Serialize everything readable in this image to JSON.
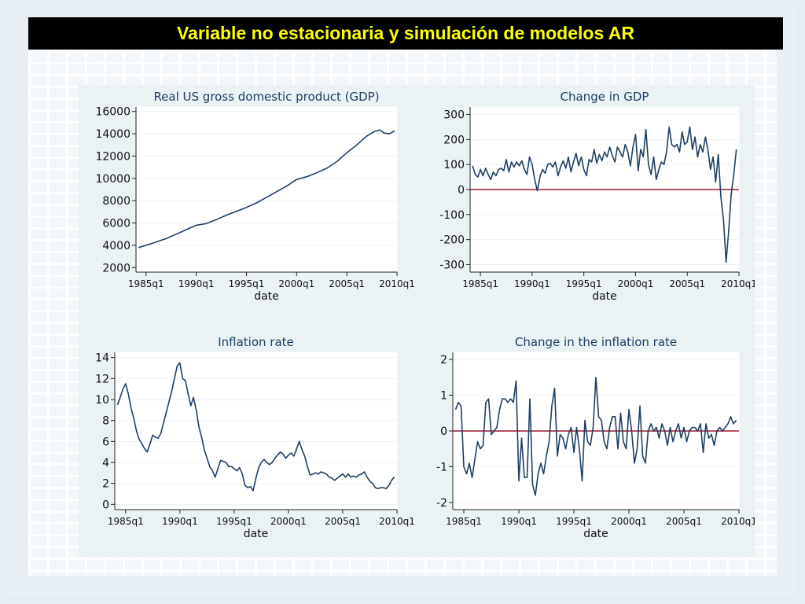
{
  "slide": {
    "title": "Variable no estacionaria y simulación de modelos AR"
  },
  "colors": {
    "title_bg": "#000000",
    "title_text": "#ffff00",
    "series": "#1f3f63",
    "zero_line": "#9b1b30",
    "panel_bg": "#eaf2f3"
  },
  "chart_data": [
    {
      "type": "line",
      "title": "Real US gross domestic product (GDP)",
      "xlabel": "date",
      "ylabel": "",
      "x_range": [
        1984.0,
        2010.0
      ],
      "ylim": [
        1600,
        16400
      ],
      "xticks": [
        {
          "pos": 1985.0,
          "label": "1985q1"
        },
        {
          "pos": 1990.0,
          "label": "1990q1"
        },
        {
          "pos": 1995.0,
          "label": "1995q1"
        },
        {
          "pos": 2000.0,
          "label": "2000q1"
        },
        {
          "pos": 2005.0,
          "label": "2005q1"
        },
        {
          "pos": 2010.0,
          "label": "2010q1"
        }
      ],
      "yticks": [
        2000,
        4000,
        6000,
        8000,
        10000,
        12000,
        14000,
        16000
      ],
      "zero_line": false,
      "series": [
        {
          "x": [
            1984.25,
            1985.0,
            1986.0,
            1987.0,
            1988.0,
            1989.0,
            1990.0,
            1991.0,
            1992.0,
            1993.0,
            1994.0,
            1995.0,
            1996.0,
            1997.0,
            1998.0,
            1999.0,
            2000.0,
            2001.0,
            2002.0,
            2003.0,
            2004.0,
            2005.0,
            2006.0,
            2007.0,
            2007.75,
            2008.25,
            2008.75,
            2009.25,
            2009.75
          ],
          "y": [
            3800,
            4000,
            4300,
            4600,
            5000,
            5400,
            5800,
            5950,
            6300,
            6700,
            7050,
            7400,
            7800,
            8300,
            8800,
            9300,
            9900,
            10150,
            10500,
            10900,
            11500,
            12300,
            13000,
            13800,
            14200,
            14350,
            14050,
            14000,
            14250
          ]
        }
      ]
    },
    {
      "type": "line",
      "title": "Change in GDP",
      "xlabel": "date",
      "ylabel": "",
      "x_range": [
        1984.0,
        2010.0
      ],
      "ylim": [
        -330,
        330
      ],
      "xticks": [
        {
          "pos": 1985.0,
          "label": "1985q1"
        },
        {
          "pos": 1990.0,
          "label": "1990q1"
        },
        {
          "pos": 1995.0,
          "label": "1995q1"
        },
        {
          "pos": 2000.0,
          "label": "2000q1"
        },
        {
          "pos": 2005.0,
          "label": "2005q1"
        },
        {
          "pos": 2010.0,
          "label": "2010q1"
        }
      ],
      "yticks": [
        -300,
        -200,
        -100,
        0,
        100,
        200,
        300
      ],
      "zero_line": true,
      "series": [
        {
          "x": [
            1984.25,
            1984.5,
            1984.75,
            1985.0,
            1985.25,
            1985.5,
            1985.75,
            1986.0,
            1986.25,
            1986.5,
            1986.75,
            1987.0,
            1987.25,
            1987.5,
            1987.75,
            1988.0,
            1988.25,
            1988.5,
            1988.75,
            1989.0,
            1989.25,
            1989.5,
            1989.75,
            1990.0,
            1990.25,
            1990.5,
            1990.75,
            1991.0,
            1991.25,
            1991.5,
            1991.75,
            1992.0,
            1992.25,
            1992.5,
            1992.75,
            1993.0,
            1993.25,
            1993.5,
            1993.75,
            1994.0,
            1994.25,
            1994.5,
            1994.75,
            1995.0,
            1995.25,
            1995.5,
            1995.75,
            1996.0,
            1996.25,
            1996.5,
            1996.75,
            1997.0,
            1997.25,
            1997.5,
            1997.75,
            1998.0,
            1998.25,
            1998.5,
            1998.75,
            1999.0,
            1999.25,
            1999.5,
            1999.75,
            2000.0,
            2000.25,
            2000.5,
            2000.75,
            2001.0,
            2001.25,
            2001.5,
            2001.75,
            2002.0,
            2002.25,
            2002.5,
            2002.75,
            2003.0,
            2003.25,
            2003.5,
            2003.75,
            2004.0,
            2004.25,
            2004.5,
            2004.75,
            2005.0,
            2005.25,
            2005.5,
            2005.75,
            2006.0,
            2006.25,
            2006.5,
            2006.75,
            2007.0,
            2007.25,
            2007.5,
            2007.75,
            2008.0,
            2008.25,
            2008.5,
            2008.75,
            2009.0,
            2009.25,
            2009.5,
            2009.75
          ],
          "y": [
            95,
            60,
            50,
            80,
            55,
            85,
            60,
            40,
            70,
            55,
            80,
            85,
            75,
            120,
            70,
            110,
            90,
            110,
            95,
            115,
            80,
            60,
            130,
            100,
            40,
            -5,
            50,
            80,
            65,
            100,
            105,
            90,
            110,
            55,
            90,
            115,
            85,
            130,
            70,
            110,
            145,
            95,
            130,
            80,
            55,
            120,
            110,
            160,
            105,
            140,
            115,
            150,
            130,
            170,
            135,
            110,
            170,
            150,
            130,
            180,
            150,
            95,
            170,
            220,
            75,
            160,
            130,
            240,
            100,
            60,
            130,
            40,
            80,
            110,
            100,
            150,
            250,
            180,
            170,
            180,
            150,
            230,
            180,
            190,
            250,
            160,
            210,
            130,
            180,
            150,
            210,
            160,
            80,
            130,
            30,
            140,
            -30,
            -120,
            -290,
            -170,
            -20,
            60,
            160
          ]
        }
      ]
    },
    {
      "type": "line",
      "title": "Inflation rate",
      "xlabel": "date",
      "ylabel": "",
      "x_range": [
        1984.0,
        2010.0
      ],
      "ylim": [
        -0.5,
        14.5
      ],
      "xticks": [
        {
          "pos": 1985.0,
          "label": "1985q1"
        },
        {
          "pos": 1990.0,
          "label": "1990q1"
        },
        {
          "pos": 1995.0,
          "label": "1995q1"
        },
        {
          "pos": 2000.0,
          "label": "2000q1"
        },
        {
          "pos": 2005.0,
          "label": "2005q1"
        },
        {
          "pos": 2010.0,
          "label": "2010q1"
        }
      ],
      "yticks": [
        0,
        2,
        4,
        6,
        8,
        10,
        12,
        14
      ],
      "zero_line": false,
      "series": [
        {
          "x": [
            1984.25,
            1984.5,
            1984.75,
            1985.0,
            1985.25,
            1985.5,
            1985.75,
            1986.0,
            1986.25,
            1986.5,
            1986.75,
            1987.0,
            1987.25,
            1987.5,
            1987.75,
            1988.0,
            1988.25,
            1988.5,
            1988.75,
            1989.0,
            1989.25,
            1989.5,
            1989.75,
            1990.0,
            1990.25,
            1990.5,
            1990.75,
            1991.0,
            1991.25,
            1991.5,
            1991.75,
            1992.0,
            1992.25,
            1992.5,
            1992.75,
            1993.0,
            1993.25,
            1993.5,
            1993.75,
            1994.0,
            1994.25,
            1994.5,
            1994.75,
            1995.0,
            1995.25,
            1995.5,
            1995.75,
            1996.0,
            1996.25,
            1996.5,
            1996.75,
            1997.0,
            1997.25,
            1997.5,
            1997.75,
            1998.0,
            1998.25,
            1998.5,
            1998.75,
            1999.0,
            1999.25,
            1999.5,
            1999.75,
            2000.0,
            2000.25,
            2000.5,
            2000.75,
            2001.0,
            2001.25,
            2001.5,
            2001.75,
            2002.0,
            2002.25,
            2002.5,
            2002.75,
            2003.0,
            2003.25,
            2003.5,
            2003.75,
            2004.0,
            2004.25,
            2004.5,
            2004.75,
            2005.0,
            2005.25,
            2005.5,
            2005.75,
            2006.0,
            2006.25,
            2006.5,
            2006.75,
            2007.0,
            2007.25,
            2007.5,
            2007.75,
            2008.0,
            2008.25,
            2008.5,
            2008.75,
            2009.0,
            2009.25,
            2009.5,
            2009.75
          ],
          "y": [
            9.5,
            10.2,
            11.0,
            11.5,
            10.5,
            9.2,
            8.2,
            7.0,
            6.2,
            5.8,
            5.3,
            5.0,
            5.8,
            6.6,
            6.4,
            6.3,
            6.8,
            7.8,
            8.8,
            9.8,
            10.8,
            12.0,
            13.2,
            13.5,
            12.0,
            11.8,
            10.6,
            9.4,
            10.2,
            9.0,
            7.4,
            6.4,
            5.2,
            4.4,
            3.6,
            3.2,
            2.6,
            3.4,
            4.2,
            4.1,
            4.0,
            3.6,
            3.6,
            3.4,
            3.2,
            3.5,
            2.9,
            1.8,
            1.6,
            1.7,
            1.3,
            2.5,
            3.5,
            4.0,
            4.3,
            4.0,
            3.8,
            4.0,
            4.4,
            4.7,
            5.0,
            4.8,
            4.4,
            4.7,
            4.9,
            4.6,
            5.3,
            6.0,
            5.2,
            4.6,
            3.6,
            2.8,
            2.9,
            3.0,
            2.9,
            3.1,
            3.0,
            2.9,
            2.6,
            2.5,
            2.3,
            2.5,
            2.7,
            2.9,
            2.6,
            2.9,
            2.6,
            2.7,
            2.6,
            2.8,
            2.9,
            3.1,
            2.6,
            2.2,
            2.0,
            1.6,
            1.5,
            1.6,
            1.6,
            1.5,
            1.8,
            2.3,
            2.6
          ]
        }
      ]
    },
    {
      "type": "line",
      "title": "Change in the inflation rate",
      "xlabel": "date",
      "ylabel": "",
      "x_range": [
        1984.0,
        2010.0
      ],
      "ylim": [
        -2.2,
        2.2
      ],
      "xticks": [
        {
          "pos": 1985.0,
          "label": "1985q1"
        },
        {
          "pos": 1990.0,
          "label": "1990q1"
        },
        {
          "pos": 1995.0,
          "label": "1995q1"
        },
        {
          "pos": 2000.0,
          "label": "2000q1"
        },
        {
          "pos": 2005.0,
          "label": "2005q1"
        },
        {
          "pos": 2010.0,
          "label": "2010q1"
        }
      ],
      "yticks": [
        -2,
        -1,
        0,
        1,
        2
      ],
      "zero_line": true,
      "series": [
        {
          "x": [
            1984.25,
            1984.5,
            1984.75,
            1985.0,
            1985.25,
            1985.5,
            1985.75,
            1986.0,
            1986.25,
            1986.5,
            1986.75,
            1987.0,
            1987.25,
            1987.5,
            1987.75,
            1988.0,
            1988.25,
            1988.5,
            1988.75,
            1989.0,
            1989.25,
            1989.5,
            1989.75,
            1990.0,
            1990.25,
            1990.5,
            1990.75,
            1991.0,
            1991.25,
            1991.5,
            1991.75,
            1992.0,
            1992.25,
            1992.5,
            1992.75,
            1993.0,
            1993.25,
            1993.5,
            1993.75,
            1994.0,
            1994.25,
            1994.5,
            1994.75,
            1995.0,
            1995.25,
            1995.5,
            1995.75,
            1996.0,
            1996.25,
            1996.5,
            1996.75,
            1997.0,
            1997.25,
            1997.5,
            1997.75,
            1998.0,
            1998.25,
            1998.5,
            1998.75,
            1999.0,
            1999.25,
            1999.5,
            1999.75,
            2000.0,
            2000.25,
            2000.5,
            2000.75,
            2001.0,
            2001.25,
            2001.5,
            2001.75,
            2002.0,
            2002.25,
            2002.5,
            2002.75,
            2003.0,
            2003.25,
            2003.5,
            2003.75,
            2004.0,
            2004.25,
            2004.5,
            2004.75,
            2005.0,
            2005.25,
            2005.5,
            2005.75,
            2006.0,
            2006.25,
            2006.5,
            2006.75,
            2007.0,
            2007.25,
            2007.5,
            2007.75,
            2008.0,
            2008.25,
            2008.5,
            2008.75,
            2009.0,
            2009.25,
            2009.5,
            2009.75
          ],
          "y": [
            0.6,
            0.8,
            0.7,
            -1.0,
            -1.2,
            -0.9,
            -1.3,
            -0.8,
            -0.3,
            -0.5,
            -0.4,
            0.8,
            0.9,
            -0.1,
            0.0,
            0.1,
            0.6,
            0.9,
            0.9,
            0.8,
            0.9,
            0.8,
            1.4,
            -1.4,
            -0.2,
            -1.3,
            -1.3,
            0.9,
            -1.5,
            -1.8,
            -1.2,
            -0.9,
            -1.2,
            -0.7,
            -0.3,
            0.7,
            1.2,
            -0.7,
            -0.1,
            -0.2,
            -0.5,
            -0.1,
            0.1,
            -0.6,
            0.1,
            -0.5,
            -1.4,
            0.3,
            -0.3,
            -0.4,
            0.1,
            1.5,
            0.4,
            0.3,
            -0.3,
            -0.5,
            0.1,
            0.4,
            0.4,
            -0.5,
            0.5,
            -0.3,
            -0.5,
            0.6,
            0.0,
            -0.9,
            -0.5,
            0.7,
            -0.7,
            -0.9,
            0.0,
            0.2,
            0.0,
            0.1,
            -0.2,
            0.2,
            0.0,
            -0.4,
            0.1,
            -0.3,
            0.0,
            0.2,
            -0.2,
            0.1,
            -0.3,
            0.0,
            0.1,
            0.1,
            0.0,
            0.2,
            -0.6,
            0.2,
            -0.2,
            -0.1,
            -0.4,
            0.0,
            0.1,
            0.0,
            0.1,
            0.2,
            0.4,
            0.2,
            0.3
          ]
        }
      ]
    }
  ]
}
